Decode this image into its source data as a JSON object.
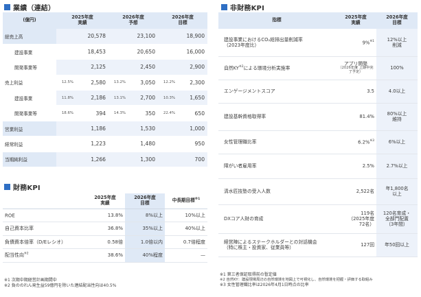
{
  "performance": {
    "title": "業績（連結）",
    "headers": {
      "unit": "(億円)",
      "c1": "2025年度",
      "c1b": "実績",
      "c2": "2026年度",
      "c2b": "予想",
      "c3": "2026年度",
      "c3b": "目標"
    },
    "rows": [
      {
        "label": "総売上高",
        "p1": "",
        "v1": "20,578",
        "p2": "",
        "v2": "23,100",
        "p3": "",
        "v3": "18,900"
      },
      {
        "label": "建設事業",
        "p1": "",
        "v1": "18,453",
        "p2": "",
        "v2": "20,650",
        "p3": "",
        "v3": "16,000"
      },
      {
        "label": "開発事業等",
        "p1": "",
        "v1": "2,125",
        "p2": "",
        "v2": "2,450",
        "p3": "",
        "v3": "2,900"
      },
      {
        "label": "売上利益",
        "p1": "12.5%",
        "v1": "2,580",
        "p2": "13.2%",
        "v2": "3,050",
        "p3": "12.2%",
        "v3": "2,300"
      },
      {
        "label": "建設事業",
        "p1": "11.8%",
        "v1": "2,186",
        "p2": "13.1%",
        "v2": "2,700",
        "p3": "10.3%",
        "v3": "1,650"
      },
      {
        "label": "開発事業等",
        "p1": "18.6%",
        "v1": "394",
        "p2": "14.3%",
        "v2": "350",
        "p3": "22.4%",
        "v3": "650"
      },
      {
        "label": "営業利益",
        "p1": "",
        "v1": "1,186",
        "p2": "",
        "v2": "1,530",
        "p3": "",
        "v3": "1,000"
      },
      {
        "label": "経常利益",
        "p1": "",
        "v1": "1,223",
        "p2": "",
        "v2": "1,480",
        "p3": "",
        "v3": "950"
      },
      {
        "label": "当期純利益",
        "p1": "",
        "v1": "1,266",
        "p2": "",
        "v2": "1,300",
        "p3": "",
        "v3": "700"
      }
    ]
  },
  "financial": {
    "title": "財務KPI",
    "headers": {
      "c1": "2025年度",
      "c1b": "実績",
      "c2": "2026年度",
      "c2b": "目標",
      "c3": "中長期目標",
      "c3sup": "※1"
    },
    "rows": [
      {
        "label": "ROE",
        "sup": "",
        "v1": "13.8%",
        "v2": "8%以上",
        "v3": "10%以上"
      },
      {
        "label": "自己資本比率",
        "sup": "",
        "v1": "36.8%",
        "v2": "35%以上",
        "v3": "40%以上"
      },
      {
        "label": "負債資本倍率（D/Eレシオ）",
        "sup": "",
        "v1": "0.58倍",
        "v2": "1.0倍以内",
        "v3": "0.7倍程度"
      },
      {
        "label": "配当性向",
        "sup": "※2",
        "v1": "38.6%",
        "v2": "40%程度",
        "v3": "—"
      }
    ],
    "notes": [
      "※1 次期中期経営計画期間中",
      "※2 負ののれん発生益59億円を除いた連結配当性向は40.5%"
    ]
  },
  "nonfinancial": {
    "title": "非財務KPI",
    "headers": {
      "c0": "指標",
      "c1": "2025年度",
      "c1b": "実績",
      "c2": "2026年度",
      "c2b": "目標"
    },
    "rows": [
      {
        "l1": "建設事業におけるCO₂総排出量削減率",
        "l2": "（2023年度比）",
        "sup": "",
        "v1": "9%",
        "v1sup": "※1",
        "v1s": "",
        "t1": "12%以上",
        "t2": "削減"
      },
      {
        "l1": "自然KY",
        "sup": "※2",
        "l1b": "による環境分析実施率",
        "v1": "アプリ開発",
        "v1sup": "",
        "v1s": "（2026年度 上期中完了予定）",
        "t1": "100%",
        "t2": ""
      },
      {
        "l1": "エンゲージメントスコア",
        "sup": "",
        "v1": "3.5",
        "v1sup": "",
        "v1s": "",
        "t1": "4.0以上",
        "t2": ""
      },
      {
        "l1": "建設基幹資格取得率",
        "sup": "",
        "v1": "81.4%",
        "v1sup": "",
        "v1s": "",
        "t1": "80%以上",
        "t2": "維持"
      },
      {
        "l1": "女性管理職比率",
        "sup": "",
        "v1": "6.2%",
        "v1sup": "※3",
        "v1s": "",
        "t1": "6%以上",
        "t2": ""
      },
      {
        "l1": "障がい者雇用率",
        "sup": "",
        "v1": "2.5%",
        "v1sup": "",
        "v1s": "",
        "t1": "2.7%以上",
        "t2": ""
      },
      {
        "l1": "清水匠技塾の受入人数",
        "sup": "",
        "v1": "2,522名",
        "v1sup": "",
        "v1s": "",
        "t1": "年1,800名",
        "t2": "以上"
      },
      {
        "l1": "DXコア人財の育成",
        "sup": "",
        "v1": "119名",
        "v1b": "（2025年度",
        "v1c": "72名）",
        "v1sup": "",
        "v1s": "",
        "t1": "120名育成・",
        "t2": "全部門配置",
        "t3": "（3年間）"
      },
      {
        "l1": "経営陣によるステークホルダーとの対話機会",
        "l2": "（特に株主・投資家、従業員等）",
        "sup": "",
        "v1": "127回",
        "v1sup": "",
        "v1s": "",
        "t1": "年50回以上",
        "t2": ""
      }
    ],
    "notes": [
      "※1 第三者保証取得前の暫定値",
      "※2 自然KY：建設現場周辺の自然環境を地図上で可視化し、自然環境を把握・評価する取組み",
      "※3 女性管理職比率は2026年4月1日時点の比率"
    ]
  }
}
